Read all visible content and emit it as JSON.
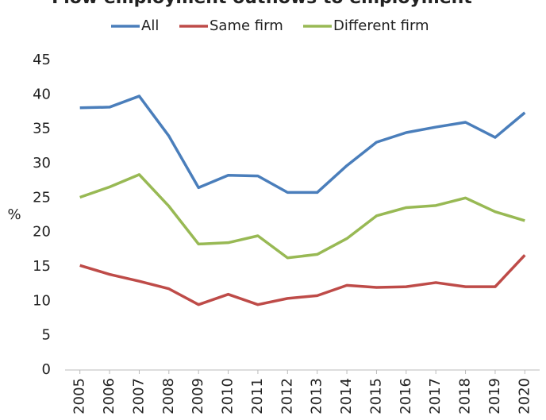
{
  "chart_data": {
    "type": "line",
    "title": "Flow employment outflows to employment",
    "y_label": "%",
    "categories": [
      "2005",
      "2006",
      "2007",
      "2008",
      "2009",
      "2010",
      "2011",
      "2012",
      "2013",
      "2014",
      "2015",
      "2016",
      "2017",
      "2018",
      "2019",
      "2020"
    ],
    "series": [
      {
        "name": "All",
        "color": "#4a7ebb",
        "values": [
          38.1,
          38.2,
          39.8,
          34.0,
          26.5,
          28.3,
          28.2,
          25.8,
          25.8,
          29.7,
          33.1,
          34.5,
          35.3,
          36.0,
          33.8,
          37.4
        ]
      },
      {
        "name": "Same firm",
        "color": "#be4b48",
        "values": [
          15.2,
          13.9,
          12.9,
          11.8,
          9.5,
          11.0,
          9.5,
          10.4,
          10.8,
          12.3,
          12.0,
          12.1,
          12.7,
          12.1,
          12.1,
          16.7
        ]
      },
      {
        "name": "Different firm",
        "color": "#98b954",
        "values": [
          25.1,
          26.6,
          28.4,
          23.8,
          18.3,
          18.5,
          19.5,
          16.3,
          16.8,
          19.1,
          22.4,
          23.6,
          23.9,
          25.0,
          23.0,
          21.7
        ]
      }
    ],
    "ylim": [
      0,
      45
    ],
    "yticks": [
      0,
      5,
      10,
      15,
      20,
      25,
      30,
      35,
      40,
      45
    ],
    "grid": false,
    "legend": "top"
  }
}
